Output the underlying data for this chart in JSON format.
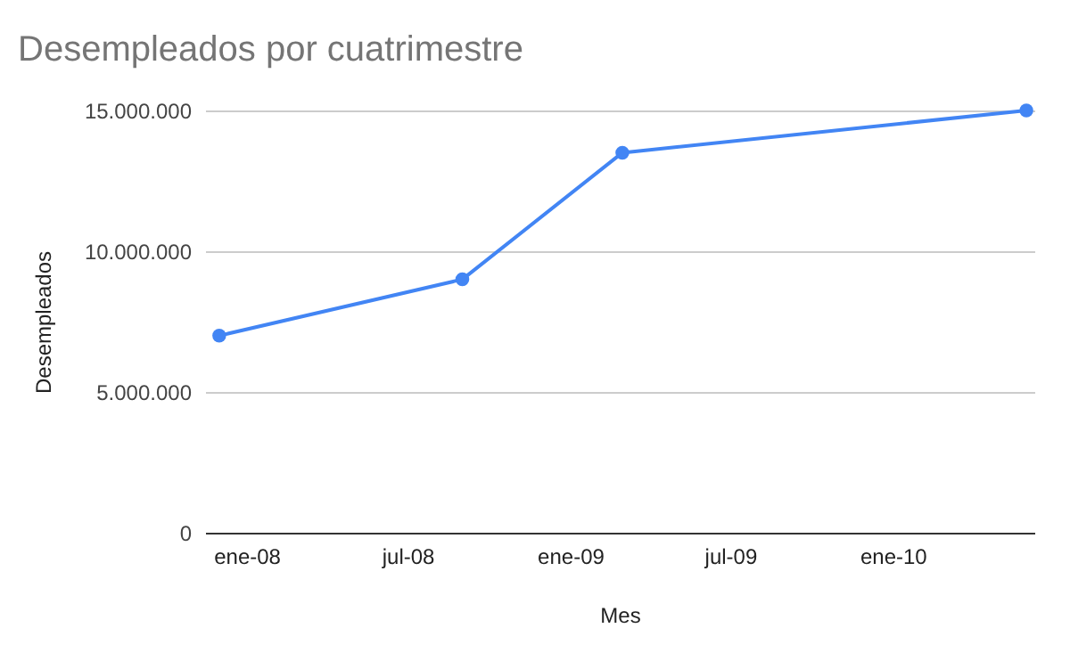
{
  "chart_data": {
    "type": "line",
    "title": "Desempleados por cuatrimestre",
    "xlabel": "Mes",
    "ylabel": "Desempleados",
    "x": [
      "2007-12-01",
      "2008-09-01",
      "2009-03-01",
      "2010-06-01"
    ],
    "series": [
      {
        "color": "#4285f4",
        "values": [
          7000000,
          9000000,
          13500000,
          15000000
        ]
      }
    ],
    "xlim": [
      "2007-11-15",
      "2010-06-10"
    ],
    "xticks": [
      {
        "value": "2008-01-01",
        "label": "ene-08"
      },
      {
        "value": "2008-07-01",
        "label": "jul-08"
      },
      {
        "value": "2009-01-01",
        "label": "ene-09"
      },
      {
        "value": "2009-07-01",
        "label": "jul-09"
      },
      {
        "value": "2010-01-01",
        "label": "ene-10"
      }
    ],
    "ylim": [
      0,
      15000000
    ],
    "yticks": [
      {
        "value": 0,
        "label": "0"
      },
      {
        "value": 5000000,
        "label": "5.000.000"
      },
      {
        "value": 10000000,
        "label": "10.000.000"
      },
      {
        "value": 15000000,
        "label": "15.000.000"
      }
    ],
    "grid": "y",
    "marker": "circle",
    "line_style": "solid"
  }
}
